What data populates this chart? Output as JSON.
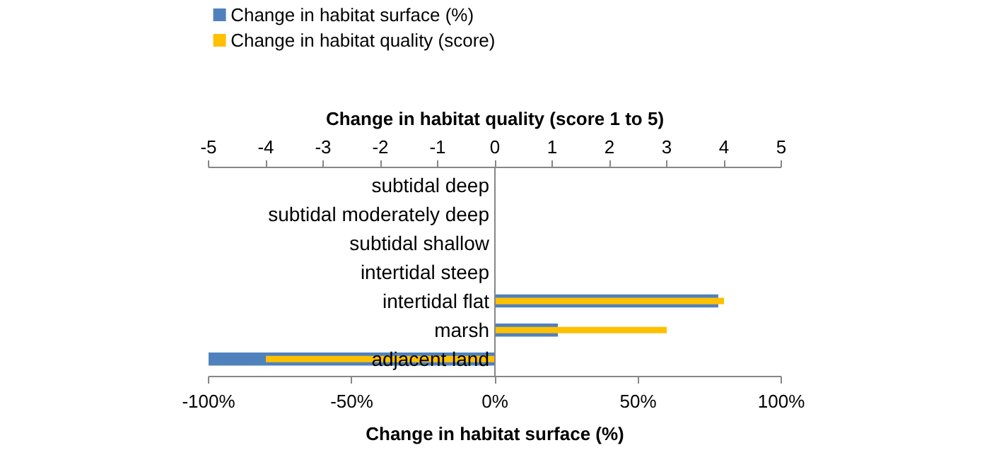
{
  "chart_data": {
    "type": "bar",
    "orientation": "horizontal",
    "categories": [
      "subtidal deep",
      "subtidal moderately deep",
      "subtidal shallow",
      "intertidal steep",
      "intertidal flat",
      "marsh",
      "adjacent land"
    ],
    "series": [
      {
        "name": "Change in habitat surface (%)",
        "color": "#4f81bd",
        "values": [
          null,
          null,
          null,
          null,
          78,
          22,
          -100
        ]
      },
      {
        "name": "Change in habitat quality (score)",
        "color": "#ffc000",
        "axis": "x2",
        "values": [
          null,
          null,
          null,
          null,
          4.0,
          3.0,
          -4.0
        ]
      }
    ],
    "xlabel": "Change in habitat surface (%)",
    "x2label": "Change in habitat quality (score 1 to 5)",
    "xlim": [
      -100,
      100
    ],
    "xticks": [
      {
        "value": -100,
        "label": "-100%"
      },
      {
        "value": -50,
        "label": "-50%"
      },
      {
        "value": 0,
        "label": "0%"
      },
      {
        "value": 50,
        "label": "50%"
      },
      {
        "value": 100,
        "label": "100%"
      }
    ],
    "x2lim": [
      -5,
      5
    ],
    "x2ticks": [
      -5,
      -4,
      -3,
      -2,
      -1,
      0,
      1,
      2,
      3,
      4,
      5
    ],
    "legend": "top left",
    "grid": false
  }
}
